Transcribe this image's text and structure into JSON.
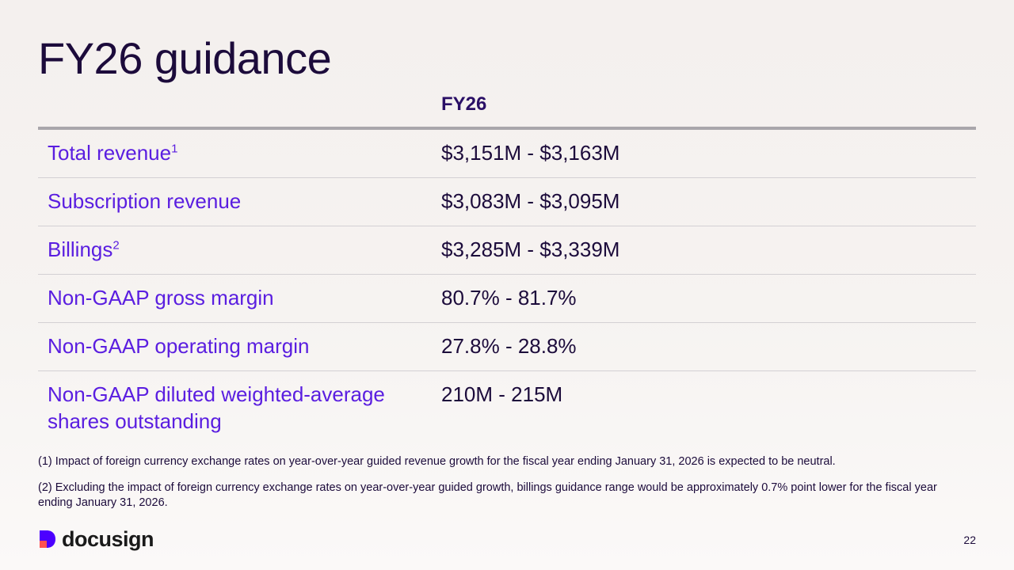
{
  "slide": {
    "title": "FY26 guidance",
    "page_number": "22"
  },
  "table": {
    "column_header": "FY26",
    "rows": [
      {
        "label": "Total revenue",
        "footnote_ref": "1",
        "value": "$3,151M - $3,163M"
      },
      {
        "label": "Subscription revenue",
        "footnote_ref": "",
        "value": "$3,083M - $3,095M"
      },
      {
        "label": "Billings",
        "footnote_ref": "2",
        "value": "$3,285M - $3,339M"
      },
      {
        "label": "Non-GAAP gross margin",
        "footnote_ref": "",
        "value": "80.7% - 81.7%"
      },
      {
        "label": "Non-GAAP operating margin",
        "footnote_ref": "",
        "value": "27.8% - 28.8%"
      },
      {
        "label": "Non-GAAP diluted weighted-average shares outstanding",
        "footnote_ref": "",
        "value": "210M - 215M"
      }
    ]
  },
  "footnotes": [
    "(1) Impact of foreign currency exchange rates on year-over-year guided revenue growth for the fiscal year ending January 31, 2026 is expected to be neutral.",
    "(2) Excluding the impact of foreign currency exchange rates on year-over-year guided growth, billings guidance range would be approximately 0.7% point lower for the fiscal year ending January 31, 2026."
  ],
  "brand": {
    "name": "docusign",
    "logo_icon": "docusign-logo-icon",
    "colors": {
      "title": "#1c0b3b",
      "label": "#5a1ee0",
      "logo_purple": "#4c00ff",
      "logo_red": "#ff5252"
    }
  }
}
